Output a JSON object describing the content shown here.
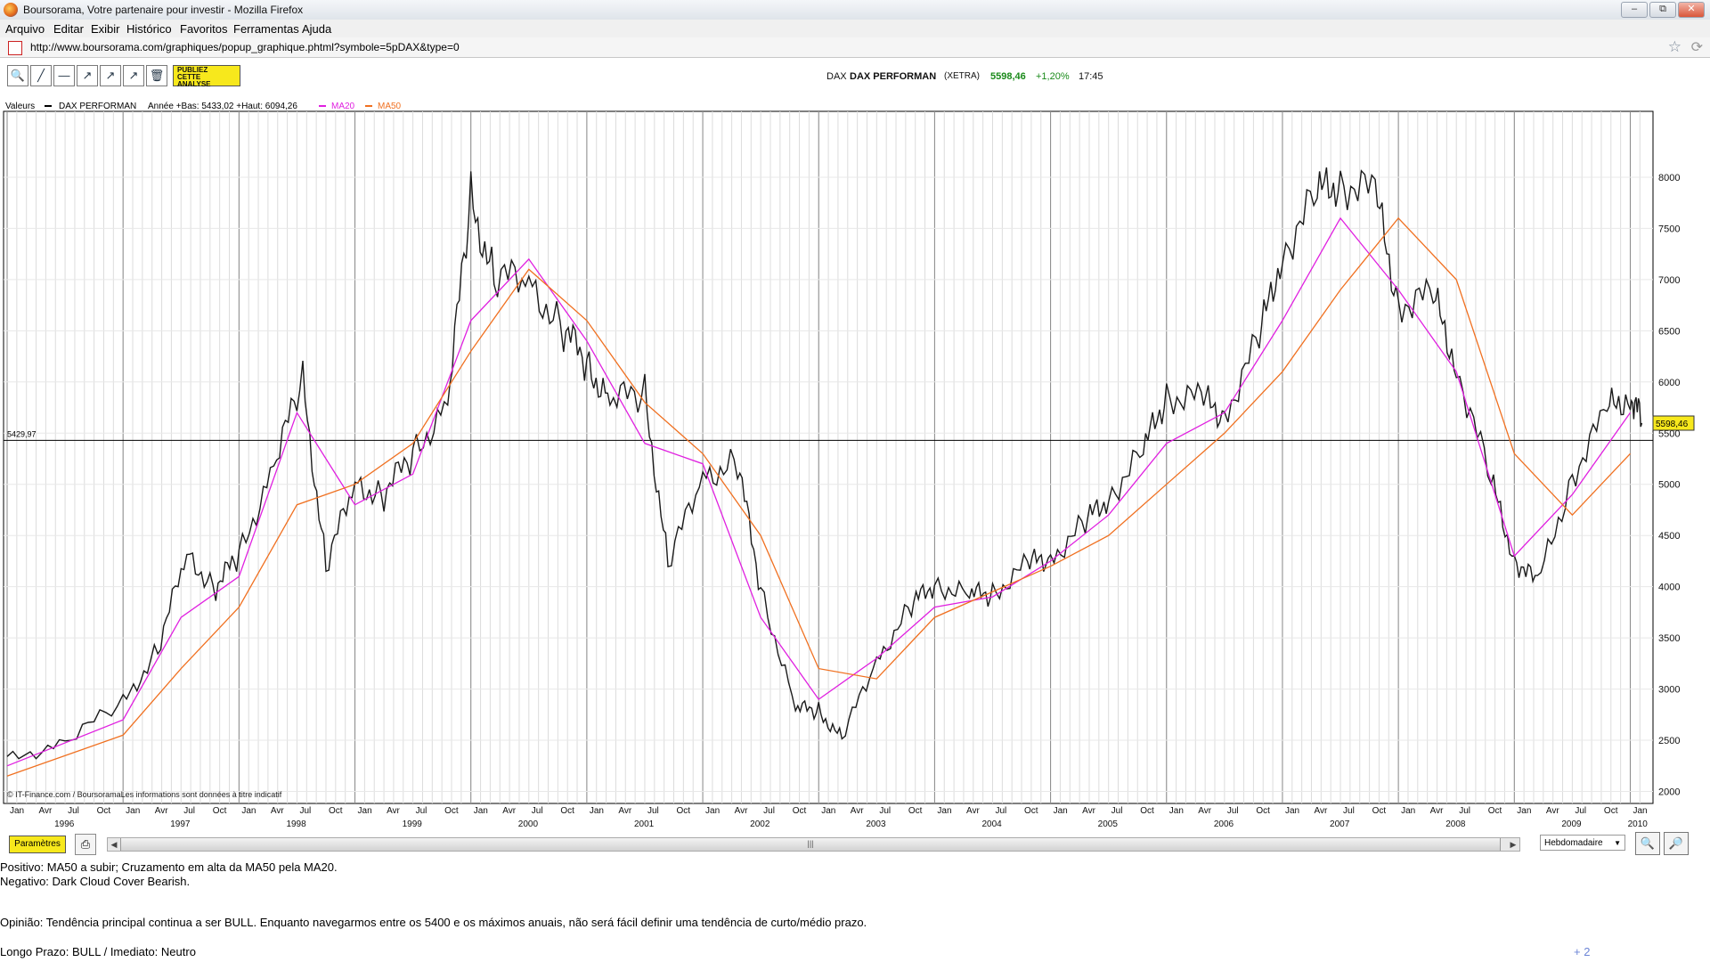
{
  "window": {
    "title": "Boursorama, Votre partenaire pour investir - Mozilla Firefox",
    "buttons": [
      "–",
      "⧉",
      "✕"
    ]
  },
  "menu": [
    "Arquivo",
    "Editar",
    "Exibir",
    "Histórico",
    "Favoritos",
    "Ferramentas",
    "Ajuda"
  ],
  "address": {
    "url": "http://www.boursorama.com/graphiques/popup_graphique.phtml?symbole=5pDAX&type=0"
  },
  "toolbar": {
    "tools": [
      "🔍",
      "╱",
      "—",
      "↗",
      "↗",
      "↗",
      "🗑"
    ],
    "publiez": [
      "PUBLIEZ",
      "CETTE",
      "ANALYSE"
    ]
  },
  "quote": {
    "market": "DAX",
    "name": "DAX PERFORMAN",
    "exchange": "(XETRA)",
    "price": "5598,46",
    "change": "+1,20%",
    "time": "17:45"
  },
  "legend": {
    "label": "Valeurs",
    "instrument": "DAX PERFORMAN",
    "range": "Année +Bas: 5433,02 +Haut: 6094,26",
    "ma20": "MA20",
    "ma50": "MA50",
    "ma20_color": "#e020e0",
    "ma50_color": "#f07020"
  },
  "chart_data": {
    "type": "line",
    "series": [
      {
        "name": "DAX PERFORMAN",
        "color": "#1a1a1a",
        "x": [
          1996.0,
          1996.5,
          1997.0,
          1997.3,
          1997.55,
          1997.8,
          1998.0,
          1998.3,
          1998.55,
          1998.75,
          1999.0,
          1999.25,
          1999.5,
          1999.8,
          2000.0,
          2000.2,
          2000.5,
          2000.8,
          2001.0,
          2001.2,
          2001.5,
          2001.7,
          2002.0,
          2002.3,
          2002.5,
          2002.8,
          2003.0,
          2003.2,
          2003.5,
          2003.8,
          2004.0,
          2004.3,
          2004.5,
          2004.8,
          2005.0,
          2005.3,
          2005.5,
          2005.8,
          2006.0,
          2006.3,
          2006.5,
          2006.8,
          2007.0,
          2007.3,
          2007.5,
          2007.8,
          2008.0,
          2008.3,
          2008.5,
          2008.8,
          2009.0,
          2009.2,
          2009.5,
          2009.8,
          2010.0,
          2010.1
        ],
        "values": [
          2300,
          2500,
          2850,
          3400,
          4300,
          4000,
          4300,
          5200,
          6000,
          4200,
          5000,
          4900,
          5300,
          5800,
          7800,
          7000,
          7000,
          6500,
          6200,
          5800,
          5900,
          4200,
          5100,
          5200,
          4000,
          2800,
          2800,
          2500,
          3300,
          3800,
          4050,
          3900,
          3950,
          4200,
          4300,
          4600,
          4900,
          5300,
          5900,
          5800,
          5700,
          6400,
          7300,
          7800,
          8000,
          7800,
          6800,
          6800,
          6200,
          5000,
          4300,
          4000,
          5100,
          5700,
          5900,
          5598
        ]
      },
      {
        "name": "MA20",
        "color": "#e020e0",
        "x": [
          1996.0,
          1997.0,
          1997.5,
          1998.0,
          1998.5,
          1999.0,
          1999.5,
          2000.0,
          2000.5,
          2001.0,
          2001.5,
          2002.0,
          2002.5,
          2003.0,
          2003.5,
          2004.0,
          2004.5,
          2005.0,
          2005.5,
          2006.0,
          2006.5,
          2007.0,
          2007.5,
          2008.0,
          2008.5,
          2009.0,
          2009.5,
          2010.0
        ],
        "values": [
          2250,
          2700,
          3700,
          4100,
          5700,
          4800,
          5100,
          6600,
          7200,
          6400,
          5400,
          5200,
          3700,
          2900,
          3300,
          3800,
          3900,
          4250,
          4700,
          5400,
          5700,
          6600,
          7600,
          6900,
          6100,
          4300,
          4900,
          5700
        ]
      },
      {
        "name": "MA50",
        "color": "#f07020",
        "x": [
          1996.0,
          1997.0,
          1997.5,
          1998.0,
          1998.5,
          1999.0,
          1999.5,
          2000.0,
          2000.5,
          2001.0,
          2001.5,
          2002.0,
          2002.5,
          2003.0,
          2003.5,
          2004.0,
          2004.5,
          2005.0,
          2005.5,
          2006.0,
          2006.5,
          2007.0,
          2007.5,
          2008.0,
          2008.5,
          2009.0,
          2009.5,
          2010.0
        ],
        "values": [
          2150,
          2550,
          3200,
          3800,
          4800,
          5000,
          5400,
          6300,
          7100,
          6600,
          5800,
          5300,
          4500,
          3200,
          3100,
          3700,
          3950,
          4200,
          4500,
          5000,
          5500,
          6100,
          6900,
          7600,
          7000,
          5300,
          4700,
          5300
        ]
      }
    ],
    "ylim": [
      1900,
      8600
    ],
    "xlim": [
      1996.0,
      2010.15
    ],
    "y_ticks": [
      "2000",
      "2500",
      "3000",
      "3500",
      "4000",
      "4500",
      "5000",
      "5500",
      "6000",
      "6500",
      "7000",
      "7500",
      "8000"
    ],
    "years": [
      "1997",
      "1998",
      "1999",
      "2000",
      "2001",
      "2002",
      "2003",
      "2004",
      "2005",
      "2006",
      "2007",
      "2008",
      "2009",
      "2010"
    ],
    "first_year_label": "1996",
    "month_labels": [
      "Jan",
      "Avr",
      "Jul",
      "Oct"
    ],
    "hline": {
      "value": 5429.97,
      "label": "5429,97"
    },
    "last_price_label": "5598,46",
    "grid": true,
    "legend_position": "top-left",
    "credit": "© IT-Finance.com / BoursoramaLes informations sont données à titre indicatif"
  },
  "controls": {
    "params": "Paramètres",
    "period": "Hebdomadaire"
  },
  "analysis": {
    "positive": "Positivo: MA50 a subir; Cruzamento em alta da MA50 pela MA20.",
    "negative": "Negativo: Dark Cloud Cover Bearish.",
    "opinion": "Opinião: Tendência principal continua a ser BULL. Enquanto navegarmos entre os 5400 e os máximos anuais, não será fácil definir uma tendência de curto/médio prazo.",
    "terms": "Longo Prazo: BULL  /  Imediato: Neutro",
    "more": "+ 2"
  }
}
